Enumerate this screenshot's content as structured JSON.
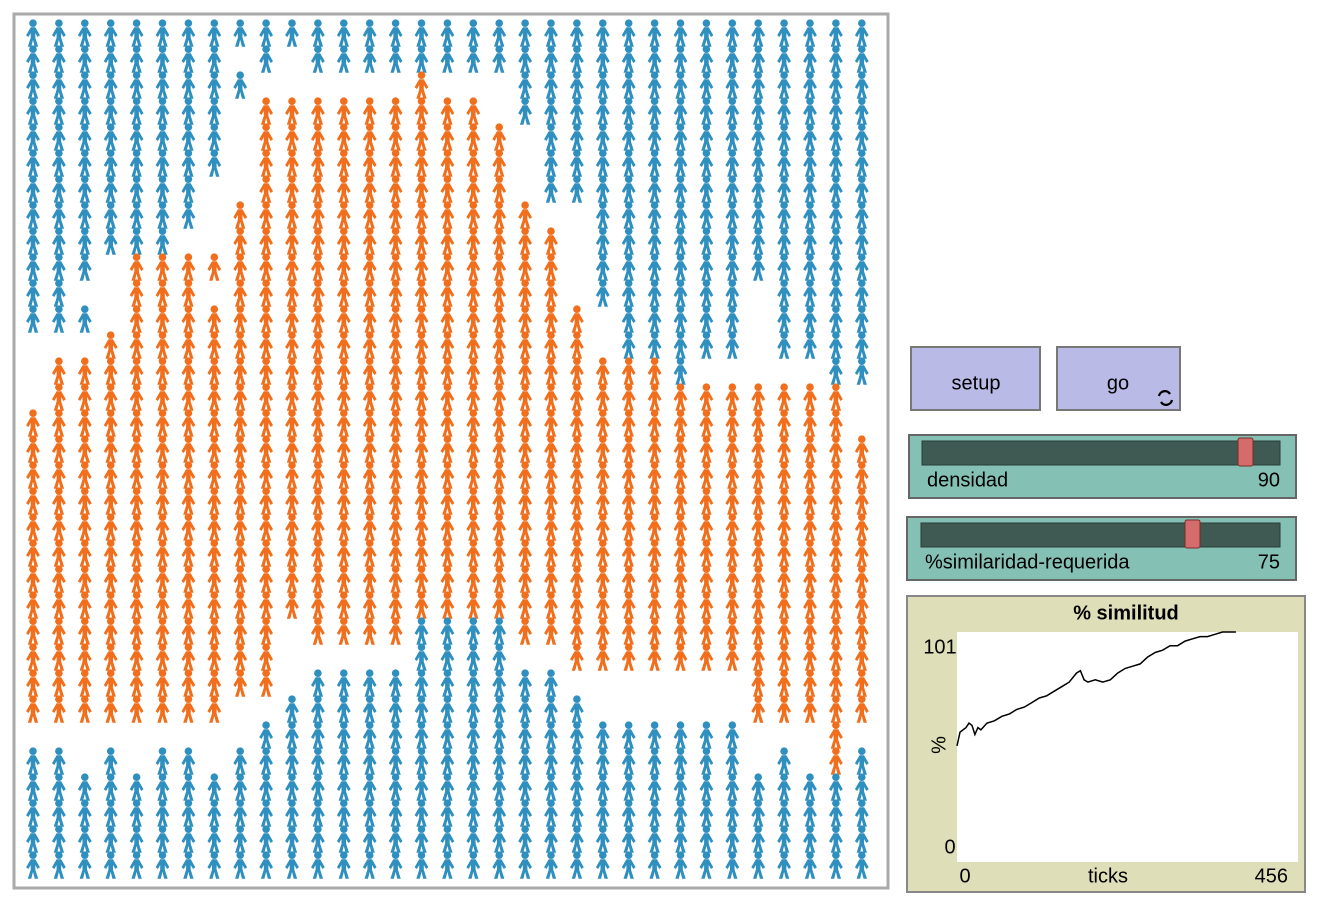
{
  "buttons": [
    {
      "label": "setup"
    },
    {
      "label": "go"
    }
  ],
  "sliders": [
    {
      "label": "densidad",
      "value": 90
    },
    {
      "label": "%similaridad-requerida",
      "value": 75
    }
  ],
  "plot": {
    "title": "% similitud",
    "x_label": "ticks",
    "y_label": "%",
    "xlim": [
      0,
      456
    ],
    "ylim": [
      0,
      101
    ],
    "x": [
      0,
      4,
      8,
      12,
      16,
      20,
      24,
      28,
      32,
      40,
      50,
      60,
      70,
      80,
      90,
      100,
      110,
      120,
      130,
      140,
      150,
      160,
      165,
      170,
      175,
      185,
      195,
      205,
      215,
      225,
      235,
      245,
      255,
      265,
      275,
      285,
      295,
      305,
      315,
      325,
      335,
      345,
      355,
      365,
      373
    ],
    "values": [
      51,
      57,
      58,
      59,
      61,
      60,
      56,
      59,
      58,
      61,
      62,
      64,
      65,
      67,
      68,
      70,
      72,
      73,
      75,
      77,
      79,
      83,
      84,
      80,
      79,
      80,
      79,
      80,
      83,
      85,
      86,
      87,
      90,
      92,
      93,
      95,
      95,
      97,
      98,
      99,
      99,
      100,
      101,
      101,
      101
    ]
  }
}
